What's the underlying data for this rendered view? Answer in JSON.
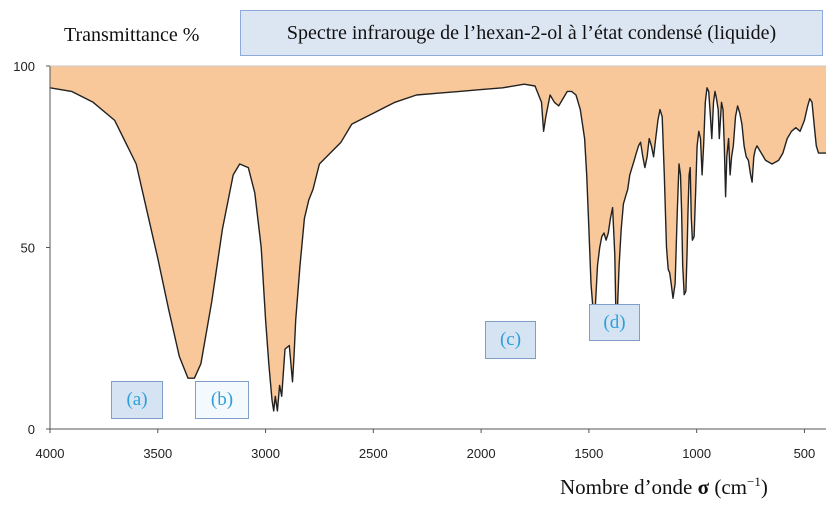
{
  "chart_data": {
    "type": "area",
    "title": "Spectre infrarouge de l’hexan-2-ol à l’état condensé (liquide)",
    "ylabel": "Transmittance %",
    "xlabel_prefix": "Nombre d’onde ",
    "xlabel_symbol": "σ",
    "xlabel_unit": " (cm",
    "xlabel_exp": "−1",
    "xlabel_close": ")",
    "xlim": [
      4000,
      400
    ],
    "ylim": [
      0,
      100
    ],
    "x_ticks": [
      4000,
      3500,
      3000,
      2500,
      2000,
      1500,
      1000,
      500
    ],
    "y_ticks": [
      0,
      50,
      100
    ],
    "fill_color": "#f8c89a",
    "line_color": "#222222",
    "points": [
      [
        4000,
        94
      ],
      [
        3900,
        93
      ],
      [
        3800,
        90
      ],
      [
        3700,
        85
      ],
      [
        3600,
        73
      ],
      [
        3550,
        60
      ],
      [
        3500,
        47
      ],
      [
        3450,
        33
      ],
      [
        3400,
        20
      ],
      [
        3360,
        14
      ],
      [
        3330,
        14
      ],
      [
        3300,
        18
      ],
      [
        3250,
        35
      ],
      [
        3200,
        55
      ],
      [
        3150,
        70
      ],
      [
        3120,
        73
      ],
      [
        3080,
        72
      ],
      [
        3050,
        65
      ],
      [
        3020,
        50
      ],
      [
        3000,
        30
      ],
      [
        2985,
        18
      ],
      [
        2970,
        8
      ],
      [
        2962,
        5
      ],
      [
        2955,
        9
      ],
      [
        2945,
        5
      ],
      [
        2935,
        12
      ],
      [
        2925,
        9
      ],
      [
        2910,
        22
      ],
      [
        2890,
        23
      ],
      [
        2875,
        13
      ],
      [
        2868,
        20
      ],
      [
        2860,
        30
      ],
      [
        2840,
        45
      ],
      [
        2820,
        58
      ],
      [
        2800,
        63
      ],
      [
        2780,
        66
      ],
      [
        2750,
        73
      ],
      [
        2700,
        76
      ],
      [
        2650,
        79
      ],
      [
        2600,
        84
      ],
      [
        2500,
        87
      ],
      [
        2400,
        90
      ],
      [
        2300,
        92
      ],
      [
        2200,
        92.5
      ],
      [
        2100,
        93
      ],
      [
        2000,
        93.5
      ],
      [
        1900,
        94
      ],
      [
        1800,
        95
      ],
      [
        1750,
        94.5
      ],
      [
        1720,
        90
      ],
      [
        1710,
        82
      ],
      [
        1700,
        86
      ],
      [
        1680,
        92
      ],
      [
        1660,
        90
      ],
      [
        1640,
        89
      ],
      [
        1600,
        93
      ],
      [
        1580,
        93
      ],
      [
        1560,
        92
      ],
      [
        1540,
        88
      ],
      [
        1520,
        80
      ],
      [
        1510,
        70
      ],
      [
        1500,
        55
      ],
      [
        1490,
        40
      ],
      [
        1478,
        31
      ],
      [
        1470,
        34
      ],
      [
        1460,
        45
      ],
      [
        1450,
        50
      ],
      [
        1440,
        53
      ],
      [
        1430,
        54
      ],
      [
        1420,
        52
      ],
      [
        1410,
        54
      ],
      [
        1400,
        58
      ],
      [
        1390,
        61
      ],
      [
        1380,
        48
      ],
      [
        1375,
        33
      ],
      [
        1368,
        32
      ],
      [
        1360,
        45
      ],
      [
        1350,
        55
      ],
      [
        1340,
        62
      ],
      [
        1330,
        64
      ],
      [
        1320,
        66
      ],
      [
        1310,
        70
      ],
      [
        1300,
        72
      ],
      [
        1290,
        74
      ],
      [
        1280,
        76
      ],
      [
        1270,
        78
      ],
      [
        1260,
        79
      ],
      [
        1250,
        75
      ],
      [
        1240,
        72
      ],
      [
        1230,
        75
      ],
      [
        1220,
        80
      ],
      [
        1210,
        78
      ],
      [
        1200,
        75
      ],
      [
        1190,
        80
      ],
      [
        1180,
        85
      ],
      [
        1170,
        88
      ],
      [
        1160,
        86
      ],
      [
        1150,
        70
      ],
      [
        1140,
        50
      ],
      [
        1132,
        44
      ],
      [
        1125,
        43
      ],
      [
        1118,
        40
      ],
      [
        1110,
        36
      ],
      [
        1100,
        40
      ],
      [
        1090,
        60
      ],
      [
        1082,
        73
      ],
      [
        1075,
        70
      ],
      [
        1070,
        60
      ],
      [
        1065,
        45
      ],
      [
        1058,
        37
      ],
      [
        1050,
        38
      ],
      [
        1045,
        48
      ],
      [
        1040,
        60
      ],
      [
        1035,
        70
      ],
      [
        1030,
        72
      ],
      [
        1025,
        58
      ],
      [
        1020,
        52
      ],
      [
        1012,
        53
      ],
      [
        1005,
        65
      ],
      [
        998,
        78
      ],
      [
        990,
        82
      ],
      [
        982,
        80
      ],
      [
        975,
        70
      ],
      [
        968,
        78
      ],
      [
        960,
        90
      ],
      [
        952,
        94
      ],
      [
        944,
        93
      ],
      [
        937,
        87
      ],
      [
        930,
        80
      ],
      [
        922,
        90
      ],
      [
        915,
        93
      ],
      [
        908,
        91
      ],
      [
        900,
        88
      ],
      [
        895,
        80
      ],
      [
        890,
        85
      ],
      [
        885,
        90
      ],
      [
        878,
        88
      ],
      [
        872,
        78
      ],
      [
        866,
        64
      ],
      [
        860,
        75
      ],
      [
        852,
        80
      ],
      [
        845,
        70
      ],
      [
        838,
        75
      ],
      [
        830,
        78
      ],
      [
        820,
        86
      ],
      [
        810,
        89
      ],
      [
        800,
        87
      ],
      [
        790,
        84
      ],
      [
        780,
        78
      ],
      [
        770,
        75
      ],
      [
        760,
        74
      ],
      [
        750,
        70
      ],
      [
        743,
        68
      ],
      [
        735,
        75
      ],
      [
        728,
        77
      ],
      [
        720,
        78
      ],
      [
        700,
        76
      ],
      [
        680,
        74
      ],
      [
        650,
        73
      ],
      [
        620,
        74
      ],
      [
        600,
        76
      ],
      [
        580,
        80
      ],
      [
        560,
        82
      ],
      [
        540,
        83
      ],
      [
        520,
        82
      ],
      [
        500,
        85
      ],
      [
        485,
        89
      ],
      [
        475,
        91
      ],
      [
        465,
        90
      ],
      [
        455,
        84
      ],
      [
        445,
        78
      ],
      [
        435,
        76
      ],
      [
        425,
        76
      ],
      [
        400,
        76
      ]
    ],
    "annotations": [
      {
        "label": "(a)",
        "x": 3360
      },
      {
        "label": "(b)",
        "x": 2920
      },
      {
        "label": "(c)",
        "x": 1480
      },
      {
        "label": "(d)",
        "x": 1110
      }
    ]
  }
}
